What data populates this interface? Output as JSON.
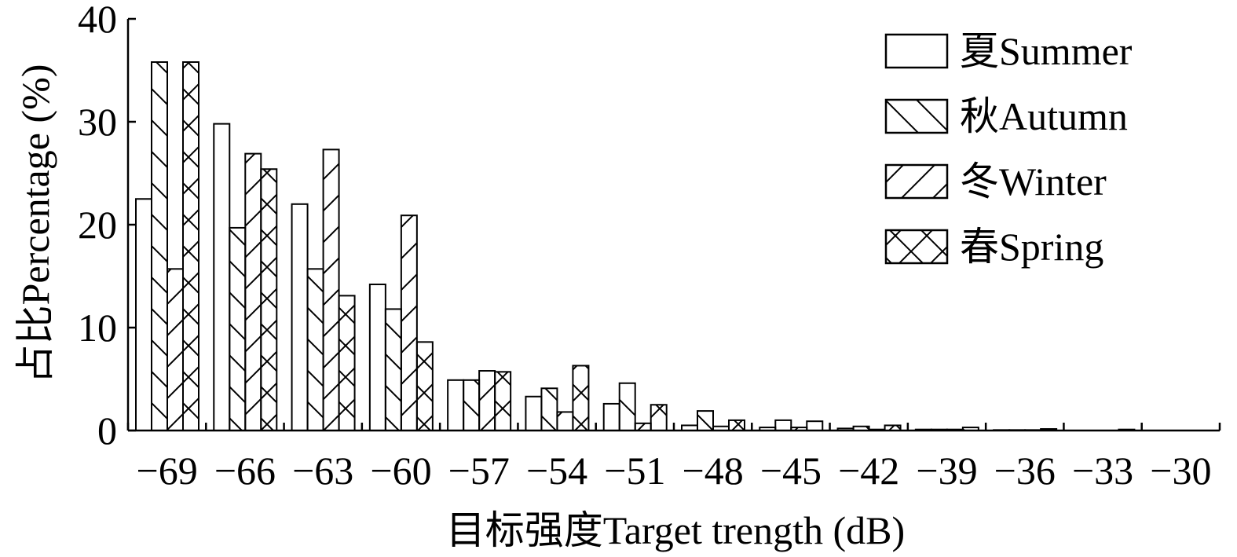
{
  "chart_data": {
    "type": "bar",
    "xlabel": "目标强度Target trength (dB)",
    "ylabel": "占比Percentage (%)",
    "ylim": [
      0,
      40
    ],
    "yticks": [
      "0",
      "10",
      "20",
      "30",
      "40"
    ],
    "categories": [
      "−69",
      "−66",
      "−63",
      "−60",
      "−57",
      "−54",
      "−51",
      "−48",
      "−45",
      "−42",
      "−39",
      "−36",
      "−33",
      "−30"
    ],
    "legend_position": "top-right",
    "grid": false,
    "series": [
      {
        "name": "夏Summer",
        "pattern": "none",
        "values": [
          22.5,
          29.8,
          22.0,
          14.2,
          4.9,
          3.3,
          2.6,
          0.5,
          0.3,
          0.2,
          0.1,
          0.05,
          0,
          0
        ]
      },
      {
        "name": "秋Autumn",
        "pattern": "back",
        "values": [
          35.8,
          19.7,
          15.7,
          11.8,
          4.9,
          4.1,
          4.6,
          1.9,
          1.0,
          0.4,
          0.1,
          0.05,
          0,
          0
        ]
      },
      {
        "name": "冬Winter",
        "pattern": "fwd",
        "values": [
          15.7,
          26.9,
          27.3,
          20.9,
          5.8,
          1.8,
          0.7,
          0.4,
          0.3,
          0.1,
          0.1,
          0.05,
          0,
          0
        ]
      },
      {
        "name": "春Spring",
        "pattern": "cross",
        "values": [
          35.8,
          25.4,
          13.1,
          8.6,
          5.7,
          6.3,
          2.5,
          1.0,
          0.9,
          0.5,
          0.3,
          0.15,
          0.1,
          0
        ]
      }
    ]
  }
}
